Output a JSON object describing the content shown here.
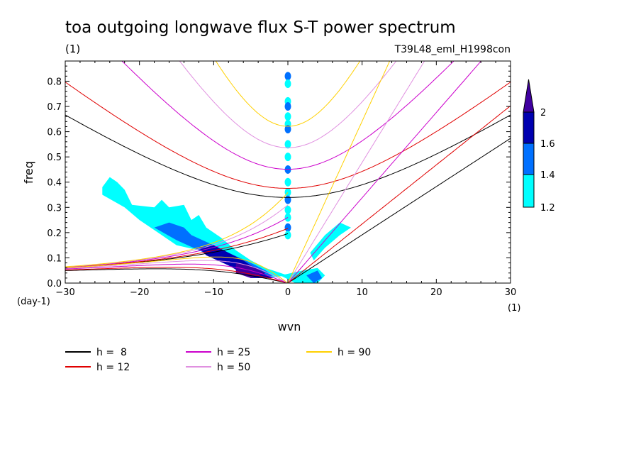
{
  "chart_data": {
    "type": "line",
    "title": "toa outgoing longwave flux S-T power spectrum",
    "subtitle_left": "(1)",
    "subtitle_right": "T39L48_eml_H1998con",
    "xlabel": "wvn",
    "ylabel": "freq",
    "x_unit": "(1)",
    "y_unit": "(day-1)",
    "xlim": [
      -30,
      30
    ],
    "ylim": [
      0,
      0.88
    ],
    "x_ticks": [
      -30,
      -20,
      -10,
      0,
      10,
      20,
      30
    ],
    "x_tick_labels": [
      "−30",
      "−20",
      "−10",
      "0",
      "10",
      "20",
      "30"
    ],
    "y_ticks": [
      0.0,
      0.1,
      0.2,
      0.3,
      0.4,
      0.5,
      0.6,
      0.7,
      0.8
    ],
    "y_tick_labels": [
      "0.0",
      "0.1",
      "0.2",
      "0.3",
      "0.4",
      "0.5",
      "0.6",
      "0.7",
      "0.8"
    ],
    "grid": false,
    "legend_position": "bottom",
    "series": [
      {
        "name": "h =  8",
        "h": 8,
        "color": "#000000"
      },
      {
        "name": "h = 12",
        "h": 12,
        "color": "#e00000"
      },
      {
        "name": "h = 25",
        "h": 25,
        "color": "#cc00cc"
      },
      {
        "name": "h = 50",
        "h": 50,
        "color": "#e090e0"
      },
      {
        "name": "h = 90",
        "h": 90,
        "color": "#ffd000"
      }
    ],
    "colorbar": {
      "levels": [
        "1.2",
        "1.4",
        "1.6",
        "2"
      ],
      "colors": [
        "#00ffff",
        "#0070ff",
        "#0000b0",
        "#4000a0"
      ]
    },
    "contour_regions": [
      {
        "level": 1,
        "points": [
          [
            -25,
            0.38
          ],
          [
            -24,
            0.42
          ],
          [
            -23,
            0.4
          ],
          [
            -22,
            0.37
          ],
          [
            -21,
            0.31
          ],
          [
            -18,
            0.3
          ],
          [
            -17,
            0.33
          ],
          [
            -16,
            0.3
          ],
          [
            -14,
            0.31
          ],
          [
            -13,
            0.25
          ],
          [
            -12,
            0.27
          ],
          [
            -11,
            0.22
          ],
          [
            -9,
            0.18
          ],
          [
            -7,
            0.13
          ],
          [
            -5,
            0.09
          ],
          [
            -3,
            0.06
          ],
          [
            0,
            0.03
          ],
          [
            -3,
            0.02
          ],
          [
            -6,
            0.05
          ],
          [
            -9,
            0.1
          ],
          [
            -12,
            0.13
          ],
          [
            -15,
            0.15
          ],
          [
            -18,
            0.21
          ],
          [
            -20,
            0.25
          ],
          [
            -22,
            0.3
          ],
          [
            -25,
            0.35
          ]
        ]
      },
      {
        "level": 1,
        "points": [
          [
            -1,
            0.03
          ],
          [
            2,
            0.05
          ],
          [
            4,
            0.06
          ],
          [
            5,
            0.03
          ],
          [
            4,
            0.0
          ],
          [
            1,
            0.0
          ]
        ]
      },
      {
        "level": 1,
        "points": [
          [
            3.5,
            0.09
          ],
          [
            5,
            0.14
          ],
          [
            7,
            0.19
          ],
          [
            8.5,
            0.22
          ],
          [
            7,
            0.24
          ],
          [
            5,
            0.19
          ],
          [
            3,
            0.12
          ]
        ]
      },
      {
        "level": 2,
        "points": [
          [
            -18,
            0.22
          ],
          [
            -16,
            0.24
          ],
          [
            -14,
            0.22
          ],
          [
            -13,
            0.19
          ],
          [
            -10,
            0.15
          ],
          [
            -8,
            0.12
          ],
          [
            -5,
            0.08
          ],
          [
            -3,
            0.05
          ],
          [
            -2,
            0.03
          ],
          [
            -4,
            0.02
          ],
          [
            -6,
            0.04
          ],
          [
            -9,
            0.09
          ],
          [
            -12,
            0.13
          ],
          [
            -15,
            0.17
          ]
        ]
      },
      {
        "level": 2,
        "points": [
          [
            2.5,
            0.03
          ],
          [
            4,
            0.05
          ],
          [
            4.6,
            0.02
          ],
          [
            3.5,
            0.0
          ]
        ]
      },
      {
        "level": 3,
        "points": [
          [
            -12,
            0.14
          ],
          [
            -10,
            0.15
          ],
          [
            -8,
            0.12
          ],
          [
            -6,
            0.09
          ],
          [
            -4,
            0.05
          ],
          [
            -2,
            0.02
          ],
          [
            -5,
            0.02
          ],
          [
            -8,
            0.07
          ],
          [
            -11,
            0.11
          ]
        ]
      },
      {
        "level": 4,
        "points": [
          [
            -7,
            0.08
          ],
          [
            -5,
            0.07
          ],
          [
            -3,
            0.04
          ],
          [
            -5,
            0.02
          ],
          [
            -7,
            0.04
          ]
        ]
      }
    ],
    "wavenumber_zero_spots": [
      0.82,
      0.79,
      0.72,
      0.7,
      0.66,
      0.63,
      0.61,
      0.55,
      0.5,
      0.45,
      0.4,
      0.36,
      0.33,
      0.29,
      0.26,
      0.22,
      0.19
    ]
  }
}
